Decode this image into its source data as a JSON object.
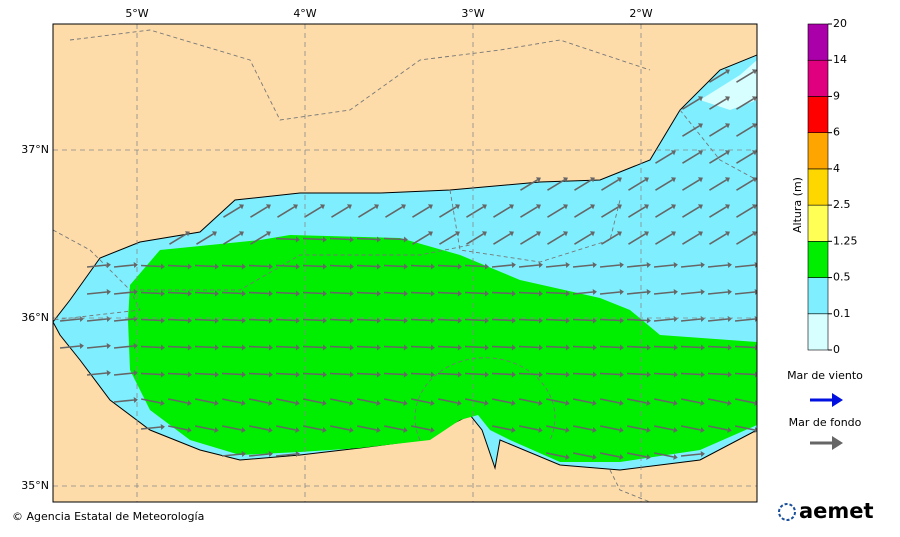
{
  "map": {
    "lon_labels": [
      "5°W",
      "4°W",
      "3°W",
      "2°W"
    ],
    "lat_labels": [
      "37°N",
      "36°N",
      "35°N"
    ]
  },
  "colorbar": {
    "title": "Altura (m)",
    "ticks": [
      0,
      0.1,
      0.5,
      1.25,
      2.5,
      4,
      6,
      9,
      14,
      20
    ],
    "colors": [
      "#d8ffff",
      "#7fefff",
      "#00ee00",
      "#ffff55",
      "#ffd700",
      "#ffa500",
      "#ff0000",
      "#e0007f",
      "#aa00aa"
    ]
  },
  "legend": [
    {
      "label": "Mar de viento",
      "color": "#0010e0"
    },
    {
      "label": "Mar de fondo",
      "color": "#666666"
    }
  ],
  "footer": {
    "credit": "© Agencia Estatal de Meteorología",
    "logo": "aemet"
  }
}
